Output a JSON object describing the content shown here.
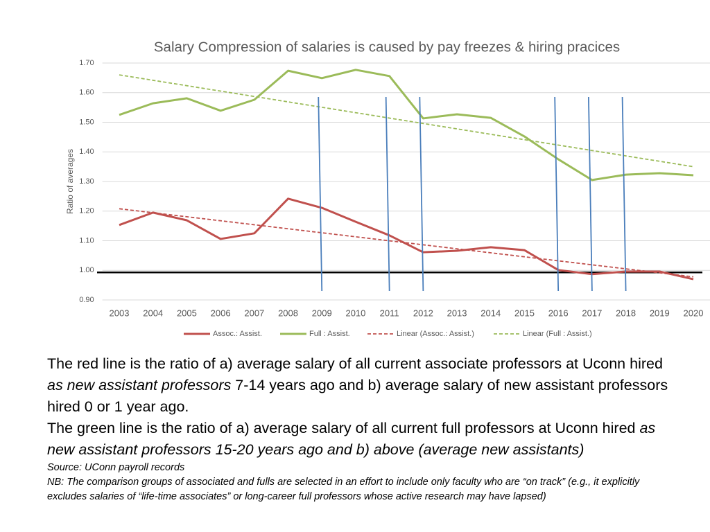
{
  "chart_data": {
    "type": "line",
    "title": "Salary Compression of salaries is caused by pay freezes & hiring pracices",
    "y_label": "Ratio of averages",
    "categories": [
      "2003",
      "2004",
      "2005",
      "2006",
      "2007",
      "2008",
      "2009",
      "2010",
      "2011",
      "2012",
      "2013",
      "2014",
      "2015",
      "2016",
      "2017",
      "2018",
      "2019",
      "2020"
    ],
    "series": [
      {
        "name": "Assoc.: Assist.",
        "color": "#c0504d",
        "values": [
          1.153,
          1.195,
          1.169,
          1.106,
          1.125,
          1.242,
          1.211,
          1.164,
          1.118,
          1.061,
          1.066,
          1.078,
          1.068,
          1.001,
          0.987,
          0.996,
          0.996,
          0.97
        ]
      },
      {
        "name": "Full : Assist.",
        "color": "#9bbb59",
        "values": [
          1.525,
          1.564,
          1.581,
          1.539,
          1.576,
          1.674,
          1.649,
          1.677,
          1.656,
          1.513,
          1.527,
          1.515,
          1.452,
          1.375,
          1.305,
          1.323,
          1.328,
          1.321
        ]
      }
    ],
    "trendlines": [
      {
        "name": "Linear (Assoc.: Assist.)",
        "color": "#c0504d",
        "start": 1.208,
        "end": 0.978
      },
      {
        "name": "Linear (Full : Assist.)",
        "color": "#9bbb59",
        "start": 1.66,
        "end": 1.35
      }
    ],
    "reference_line": 0.993,
    "reference_color": "#000000",
    "vertical_markers": [
      2009,
      2011,
      2012,
      2016,
      2017,
      2018
    ],
    "marker_color": "#4a7ebb",
    "ylim": [
      0.9,
      1.7
    ],
    "yticks": [
      {
        "value": 0.9,
        "label": "0.90"
      },
      {
        "value": 1.0,
        "label": "1.00"
      },
      {
        "value": 1.1,
        "label": "1.10"
      },
      {
        "value": 1.2,
        "label": "1.20"
      },
      {
        "value": 1.3,
        "label": "1.30"
      },
      {
        "value": 1.4,
        "label": "1.40"
      },
      {
        "value": 1.5,
        "label": "1.50"
      },
      {
        "value": 1.6,
        "label": "1.60"
      },
      {
        "value": 1.7,
        "label": "1.70"
      }
    ],
    "grid": true,
    "legend": "bottom"
  },
  "notes": {
    "lines": [
      [
        {
          "text": "The red line is the ratio of a) average salary of all current associate professors at Uconn hired",
          "italic": false
        }
      ],
      [
        {
          "text": "as new assistant professors",
          "italic": true
        },
        {
          "text": " 7-14 years ago and b) average salary of new assistant professors",
          "italic": false
        }
      ],
      [
        {
          "text": "hired 0 or 1 year ago.",
          "italic": false
        }
      ],
      [
        {
          "text": "The green line is the ratio of a) average salary of all current full professors at Uconn hired ",
          "italic": false
        },
        {
          "text": "as",
          "italic": true
        }
      ],
      [
        {
          "text": "new assistant professors 15-20 years ago and b) above (average new assistants)",
          "italic": true
        }
      ]
    ],
    "small_lines": [
      "Source: UConn payroll records",
      "NB: The comparison groups of associated and fulls are selected in an effort to include only faculty who are “on track” (e.g., it explicitly",
      "excludes salaries of “life-time associates” or long-career full professors whose active research may have lapsed)"
    ]
  }
}
